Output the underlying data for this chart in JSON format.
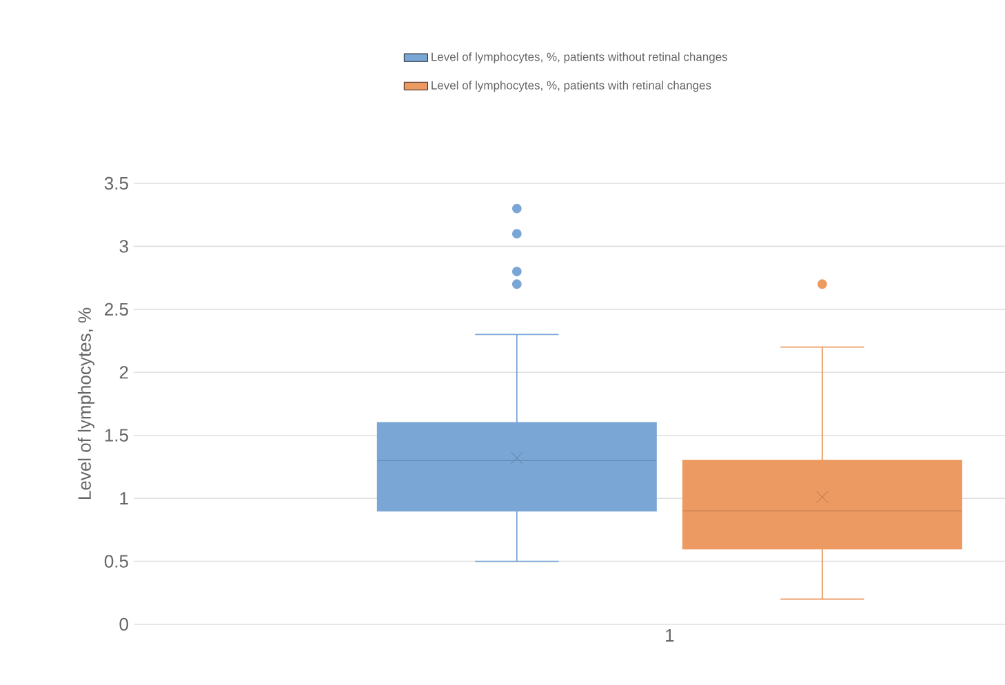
{
  "chart_data": {
    "type": "box",
    "categories": [
      "1"
    ],
    "ylabel": "Level of lymphocytes, %",
    "ylim": [
      0,
      3.5
    ],
    "yticks": [
      0,
      0.5,
      1,
      1.5,
      2,
      2.5,
      3,
      3.5
    ],
    "grid": "y",
    "legend": "top",
    "series": [
      {
        "name": "Level of lymphocytes, %, patients without retinal changes",
        "color": "#7aa6d6",
        "boxes": [
          {
            "low": 0.5,
            "q1": 0.9,
            "median": 1.3,
            "q3": 1.6,
            "high": 2.3,
            "mean": 1.32,
            "outliers": [
              2.7,
              2.8,
              3.1,
              3.3
            ]
          }
        ]
      },
      {
        "name": "Level of lymphocytes, %, patients with retinal changes",
        "color": "#ed9a62",
        "boxes": [
          {
            "low": 0.2,
            "q1": 0.6,
            "median": 0.9,
            "q3": 1.3,
            "high": 2.2,
            "mean": 1.01,
            "outliers": [
              2.7
            ]
          }
        ]
      }
    ]
  }
}
